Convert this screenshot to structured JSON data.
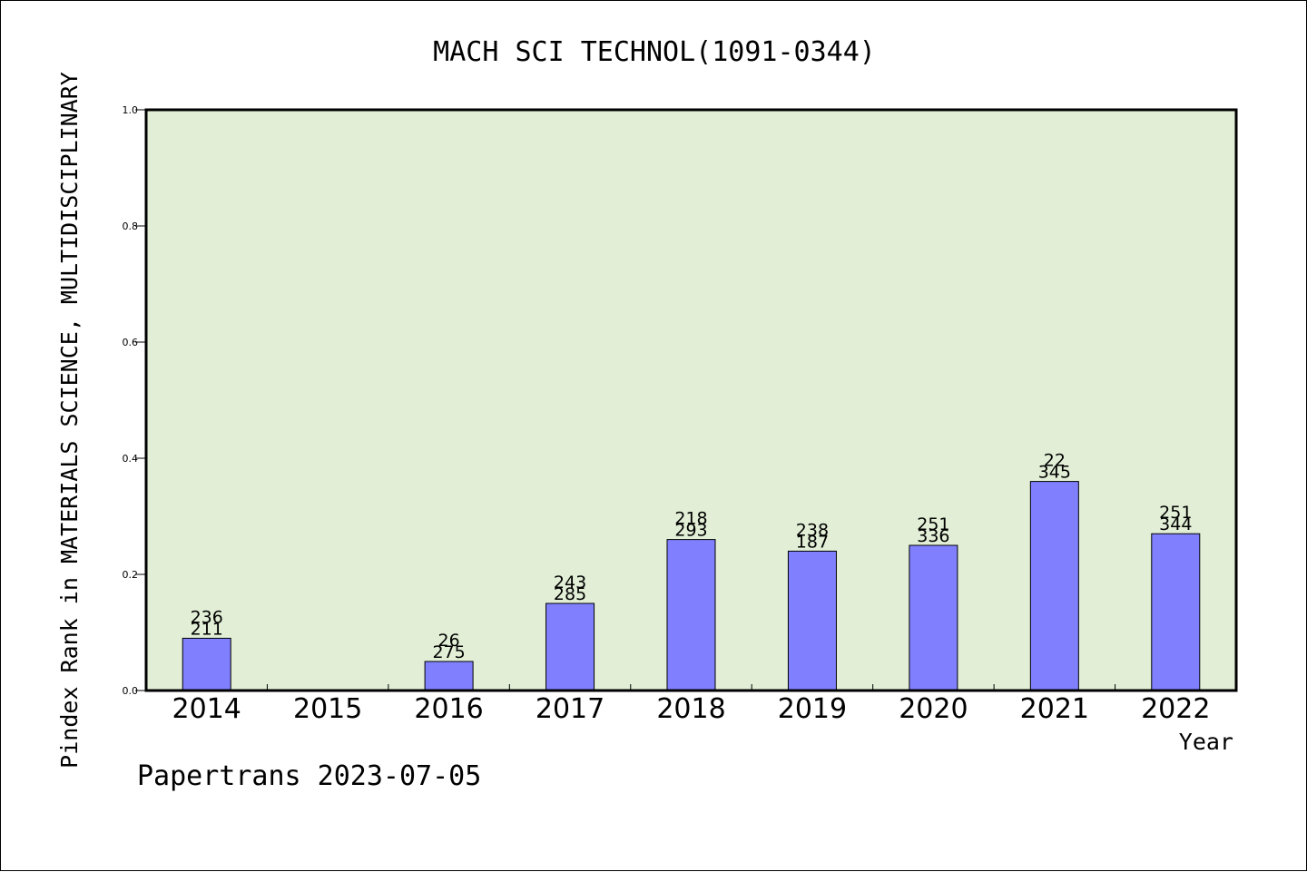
{
  "chart_data": {
    "type": "bar",
    "title": "MACH SCI TECHNOL(1091-0344)",
    "xlabel": "Year",
    "ylabel": "Pindex Rank in MATERIALS SCIENCE, MULTIDISCIPLINARY",
    "ylim": [
      0,
      1.0
    ],
    "yticks": [
      "0.0",
      "0.2",
      "0.4",
      "0.6",
      "0.8",
      "1.0"
    ],
    "categories": [
      "2014",
      "2015",
      "2016",
      "2017",
      "2018",
      "2019",
      "2020",
      "2021",
      "2022"
    ],
    "values": [
      0.09,
      null,
      0.05,
      0.15,
      0.26,
      0.24,
      0.25,
      0.36,
      0.27
    ],
    "labels_top": [
      "236",
      "",
      "26",
      "243",
      "218",
      "238",
      "251",
      "22",
      "251"
    ],
    "labels_bottom": [
      "211",
      "",
      "275",
      "285",
      "293",
      "187",
      "336",
      "345",
      "344"
    ],
    "grid": false,
    "colors": {
      "plot_background": "#e2efd6",
      "bar_fill": "#8080ff",
      "bar_stroke": "#000000"
    }
  },
  "footer": {
    "credit": "Papertrans 2023-07-05"
  }
}
